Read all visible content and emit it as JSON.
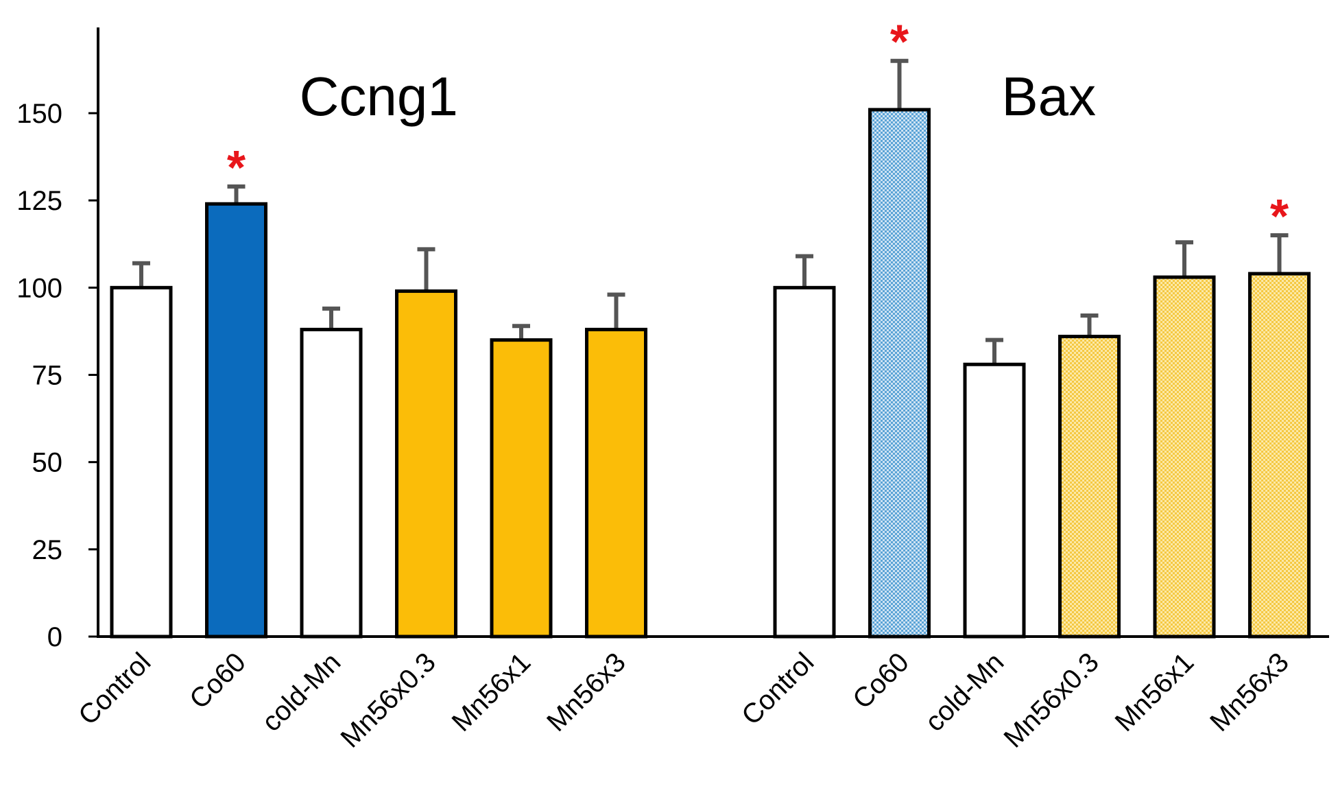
{
  "chart_data": {
    "type": "bar",
    "title": "",
    "xlabel": "",
    "ylabel": "",
    "ylim": [
      0,
      170
    ],
    "yticks": [
      0,
      25,
      50,
      75,
      100,
      125,
      150
    ],
    "grid": false,
    "significance_marker": "*",
    "colors": {
      "white": "#ffffff",
      "blue": "#0b6bbd",
      "yellow": "#fbbd08",
      "light_blue_pattern": "#5aa3d6",
      "light_yellow_pattern": "#f5c842",
      "axis": "#000000",
      "error_bar": "#555555",
      "star": "#e8161b"
    },
    "groups": [
      {
        "name": "Ccng1",
        "bars": [
          {
            "category": "Control",
            "value": 100,
            "error": 7,
            "fill": "white",
            "significant": false
          },
          {
            "category": "Co60",
            "value": 124,
            "error": 5,
            "fill": "blue",
            "significant": true
          },
          {
            "category": "cold-Mn",
            "value": 88,
            "error": 6,
            "fill": "white",
            "significant": false
          },
          {
            "category": "Mn56x0.3",
            "value": 99,
            "error": 12,
            "fill": "yellow",
            "significant": false
          },
          {
            "category": "Mn56x1",
            "value": 85,
            "error": 4,
            "fill": "yellow",
            "significant": false
          },
          {
            "category": "Mn56x3",
            "value": 88,
            "error": 10,
            "fill": "yellow",
            "significant": false
          }
        ]
      },
      {
        "name": "Bax",
        "bars": [
          {
            "category": "Control",
            "value": 100,
            "error": 9,
            "fill": "white",
            "significant": false
          },
          {
            "category": "Co60",
            "value": 151,
            "error": 14,
            "fill": "light_blue_pattern",
            "significant": true
          },
          {
            "category": "cold-Mn",
            "value": 78,
            "error": 7,
            "fill": "white",
            "significant": false
          },
          {
            "category": "Mn56x0.3",
            "value": 86,
            "error": 6,
            "fill": "light_yellow_pattern",
            "significant": false
          },
          {
            "category": "Mn56x1",
            "value": 103,
            "error": 10,
            "fill": "light_yellow_pattern",
            "significant": false
          },
          {
            "category": "Mn56x3",
            "value": 104,
            "error": 11,
            "fill": "light_yellow_pattern",
            "significant": true
          }
        ]
      }
    ]
  }
}
